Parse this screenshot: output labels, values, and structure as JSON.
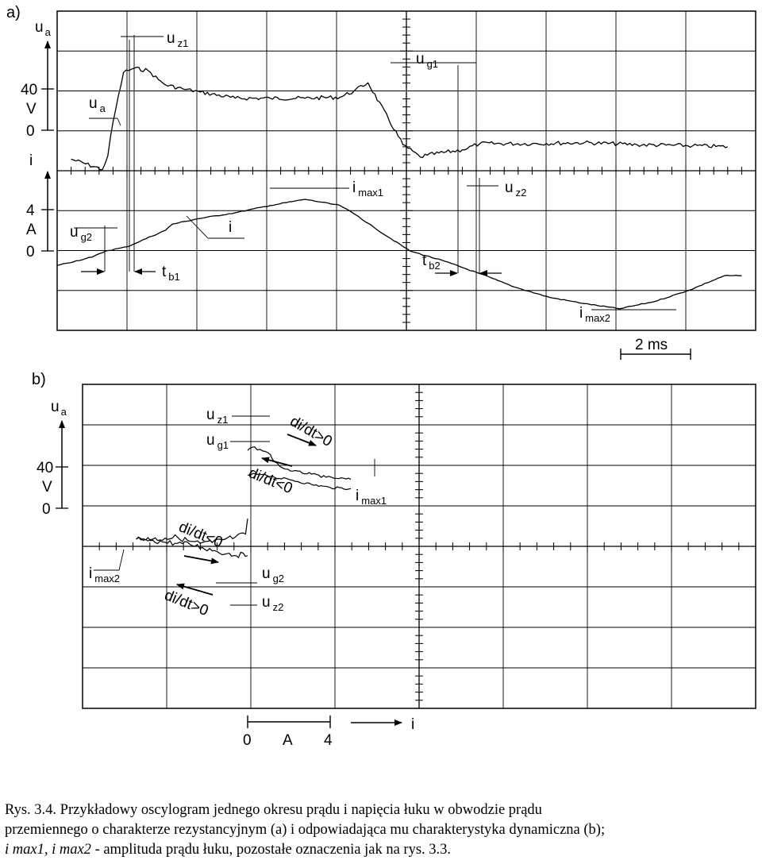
{
  "figure": {
    "panel_a_label": "a)",
    "panel_b_label": "b)",
    "time_scale_label": "2 ms"
  },
  "caption": {
    "line1": "Rys. 3.4. Przykładowy oscylogram jednego okresu prądu i napięcia łuku w obwodzie prądu",
    "line2": "przemiennego o charakterze rezystancyjnym (a) i odpowiadająca mu charakterystyka dynamiczna (b);",
    "line3_italic": "i max1, i max2",
    "line3_rest": " - amplituda prądu łuku, pozostałe oznaczenia jak na rys. 3.3."
  },
  "chart_data": [
    {
      "type": "line",
      "panel": "a)",
      "description_free": true,
      "x_unit": "ms",
      "voltage_axis": {
        "symbol": "u",
        "sub": "a",
        "scale_value": "40",
        "unit": "V",
        "zero": "0"
      },
      "current_axis": {
        "symbol": "i",
        "scale_value": "4",
        "unit": "A",
        "zero": "0"
      },
      "grid": true,
      "grid_divisions": {
        "x": 10,
        "y": 8
      },
      "series": [
        {
          "name": "u_a",
          "unit": "V",
          "x": [
            0.4,
            1.3,
            1.45,
            1.6,
            1.9,
            2.2,
            2.6,
            2.9,
            3.1,
            3.6,
            4.1,
            5.1,
            6.1,
            7.1,
            8.1,
            8.5,
            8.9,
            9.9,
            10.4,
            10.6,
            11.6,
            12.1,
            13.6,
            15.1,
            16.6,
            18.2,
            19.2
          ],
          "y": [
            -28,
            -38,
            -25,
            8,
            56,
            60,
            58,
            49,
            44,
            40,
            37,
            31,
            31,
            31,
            32,
            38,
            46,
            -14,
            -26,
            -24,
            -19,
            -13,
            -13,
            -12,
            -14,
            -15,
            -16
          ]
        },
        {
          "name": "i",
          "unit": "A",
          "x": [
            0,
            1.0,
            1.4,
            2.0,
            3.1,
            3.3,
            4.0,
            5.1,
            6.1,
            7.1,
            8.1,
            8.6,
            9.1,
            10.1,
            11.1,
            12.1,
            13.1,
            14.1,
            14.6,
            15.1,
            16.1,
            17.1,
            18.1,
            19.1,
            19.6
          ],
          "y": [
            -1.4,
            -0.6,
            0,
            0.4,
            2.0,
            2.6,
            3.1,
            3.7,
            4.4,
            5.0,
            4.4,
            3.4,
            2.2,
            0,
            -1.0,
            -2.2,
            -3.5,
            -4.5,
            -4.8,
            -5.1,
            -5.6,
            -4.9,
            -3.8,
            -2.4,
            -2.4
          ]
        }
      ],
      "annotations": [
        {
          "symbol": "u",
          "sub": "a"
        },
        {
          "symbol": "u",
          "sub": "z1"
        },
        {
          "symbol": "u",
          "sub": "g1"
        },
        {
          "symbol": "u",
          "sub": "g2"
        },
        {
          "symbol": "u",
          "sub": "z2"
        },
        {
          "symbol": "i",
          "sub": ""
        },
        {
          "symbol": "i",
          "sub": "max1"
        },
        {
          "symbol": "i",
          "sub": "max2"
        },
        {
          "symbol": "t",
          "sub": "b1"
        },
        {
          "symbol": "t",
          "sub": "b2"
        }
      ]
    },
    {
      "type": "line",
      "panel": "b)",
      "x_axis": {
        "symbol": "i",
        "zero": "0",
        "unit": "A",
        "scale_value": "4"
      },
      "y_axis": {
        "symbol": "u",
        "sub": "a",
        "scale_value": "40",
        "unit": "V",
        "zero": "0"
      },
      "grid": true,
      "grid_divisions": {
        "x": 8,
        "y": 8
      },
      "series": [
        {
          "name": "di/dt>0 (i>0)",
          "x": [
            0,
            0.2,
            0.6,
            1.1,
            1.3,
            1.7,
            2.2,
            3.1,
            3.8,
            4.3,
            5.0
          ],
          "y": [
            56,
            59,
            57,
            52,
            45,
            39,
            36,
            33,
            30,
            29,
            28
          ]
        },
        {
          "name": "di/dt<0 (i>0)",
          "x": [
            0,
            0.4,
            0.8,
            1.3,
            2.2,
            3.1,
            4.0,
            5.0
          ],
          "y": [
            32,
            33,
            33,
            30,
            27,
            23,
            20,
            19
          ]
        },
        {
          "name": "di/dt<0 (i<0)",
          "x": [
            -5.4,
            -4.6,
            -4.0,
            -3.4,
            -2.8,
            -2.3,
            -1.7,
            -1.1,
            -0.6,
            -0.1,
            0
          ],
          "y": [
            -30,
            -30,
            -29,
            -28,
            -32,
            -34,
            -33,
            -30,
            -28,
            -25,
            -10
          ]
        },
        {
          "name": "di/dt>0 (i<0)",
          "x": [
            -5.4,
            -4.6,
            -4.0,
            -3.4,
            -2.8,
            -2.2,
            -1.6,
            -1.0,
            0
          ],
          "y": [
            -30,
            -31,
            -33,
            -34,
            -35,
            -38,
            -41,
            -44,
            -46
          ]
        }
      ],
      "annotations": [
        {
          "symbol": "u",
          "sub": "z1"
        },
        {
          "symbol": "u",
          "sub": "g1"
        },
        {
          "symbol": "u",
          "sub": "g2"
        },
        {
          "symbol": "u",
          "sub": "z2"
        },
        {
          "symbol": "i",
          "sub": "max1"
        },
        {
          "symbol": "i",
          "sub": "max2"
        },
        {
          "text": "di/dt>0"
        },
        {
          "text": "di/dt<0"
        },
        {
          "text": "di/dt<0"
        },
        {
          "text": "di/dt>0"
        }
      ]
    }
  ]
}
